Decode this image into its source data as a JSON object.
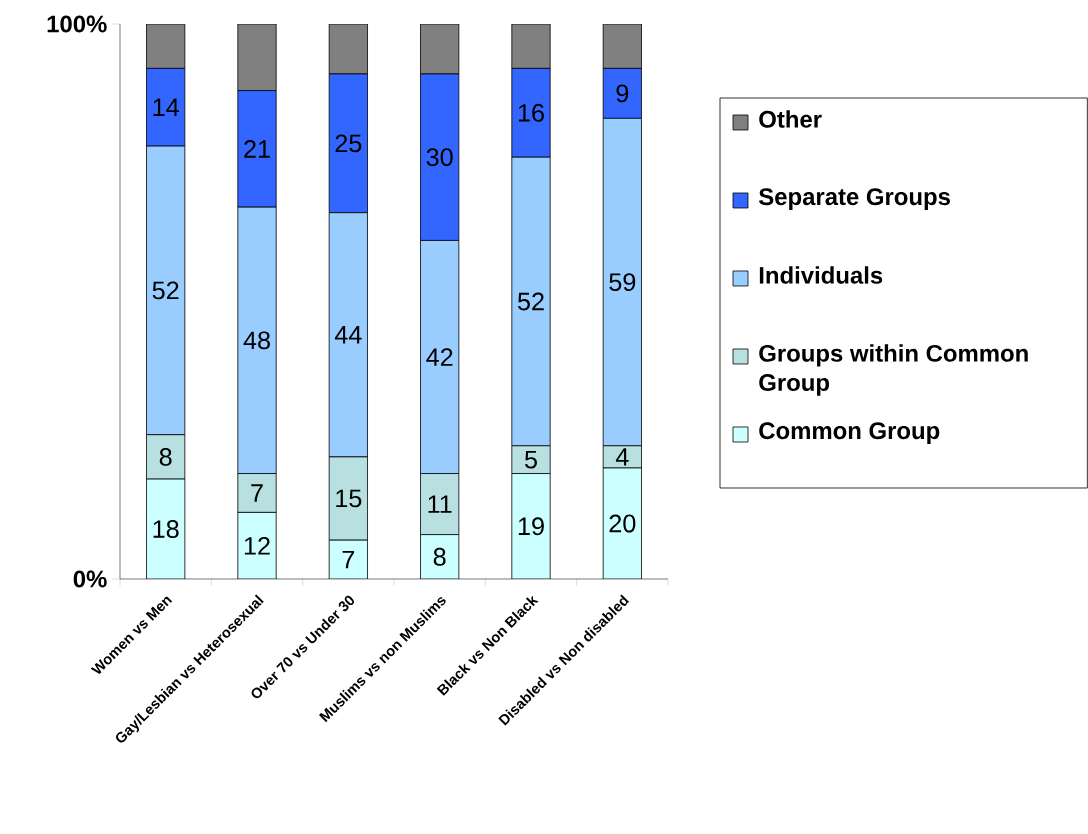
{
  "chart_data": {
    "type": "bar",
    "stacked": true,
    "categories": [
      "Women vs Men",
      "Gay/Lesbian vs Heterosexual",
      "Over 70 vs Under 30",
      "Muslims vs non Muslims",
      "Black vs Non Black",
      "Disabled vs Non disabled"
    ],
    "series": [
      {
        "name": "Common Group",
        "color": "#ccffff",
        "values": [
          18,
          12,
          7,
          8,
          19,
          20
        ],
        "value_labels": [
          "18",
          "12",
          "7",
          "8",
          "19",
          "20"
        ]
      },
      {
        "name": "Groups within Common Group",
        "color": "#b8e0e0",
        "values": [
          8,
          7,
          15,
          11,
          5,
          4
        ],
        "value_labels": [
          "8",
          "7",
          "15",
          "11",
          "5",
          "4"
        ]
      },
      {
        "name": "Individuals",
        "color": "#99ccff",
        "values": [
          52,
          48,
          44,
          42,
          52,
          59
        ],
        "value_labels": [
          "52",
          "48",
          "44",
          "42",
          "52",
          "59"
        ]
      },
      {
        "name": "Separate Groups",
        "color": "#3366ff",
        "values": [
          14,
          21,
          25,
          30,
          16,
          9
        ],
        "value_labels": [
          "14",
          "21",
          "25",
          "30",
          "16",
          "9"
        ]
      },
      {
        "name": "Other",
        "color": "#808080",
        "values": [
          8,
          12,
          9,
          9,
          8,
          8
        ]
      }
    ],
    "ylim": [
      0,
      100
    ],
    "yticks": [
      {
        "value": 0,
        "label": "0%"
      },
      {
        "value": 100,
        "label": "100%"
      }
    ],
    "legend": "right"
  }
}
